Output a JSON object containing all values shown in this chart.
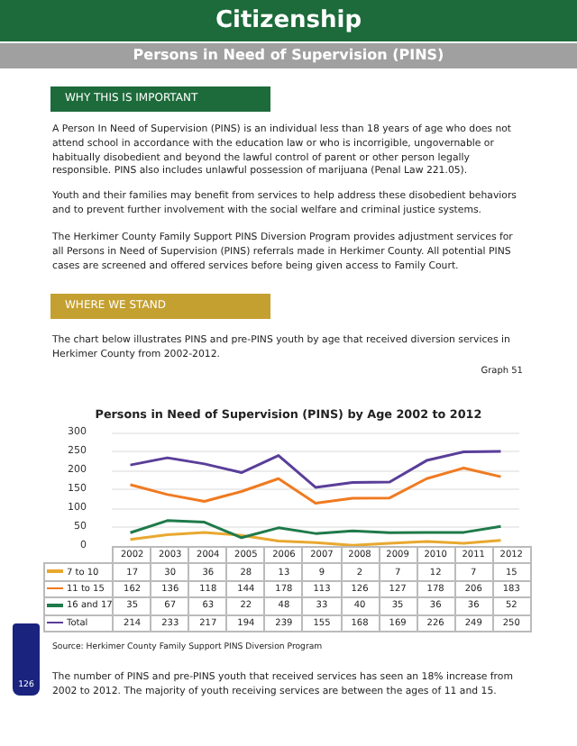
{
  "chart_data": {
    "type": "line",
    "title": "Citizenship",
    "subtitle": "Persons in Need of Supervision (PINS)",
    "annotations": [
      "WHY THIS IS IMPORTANT",
      "A Person In Need of Supervision (PINS) is an individual less than 18 years of age who does not attend school in accordance with the education law or who is incorrigible, ungovernable or habitually disobedient and beyond the lawful control of parent or other person legally responsible.  PINS also includes unlawful possession of marijuana (Penal Law 221.05).",
      "Youth and their families may benefit from services to help address these disobedient behaviors and to prevent further involvement with the social welfare and criminal justice systems.",
      "The Herkimer County Family Support PINS Diversion Program provides adjustment services for all Persons in Need of Supervision (PINS) referrals made in Herkimer County.  All potential PINS cases are screened and offered services before being given access to Family Court.",
      "WHERE WE STAND",
      "The chart below illustrates PINS and pre-PINS youth by age that received diversion services in Herkimer County from 2002-2012.",
      "Graph 51",
      "Persons in Need of Supervision (PINS) by Age 2002 to 2012",
      "Source: Herkimer County Family Support PINS Diversion Program",
      "The number of PINS and pre-PINS youth that received services has seen an 18% increase from 2002 to 2012. The majority of youth receiving services are between the ages of 11 and 15.",
      "126"
    ],
    "categories": [
      "2002",
      "2003",
      "2004",
      "2005",
      "2006",
      "2007",
      "2008",
      "2009",
      "2010",
      "2011",
      "2012"
    ],
    "series": [
      {
        "name": "7 to 10",
        "color": "#e8a830",
        "values": [
          17,
          30,
          36,
          28,
          13,
          9,
          2,
          7,
          12,
          7,
          15
        ]
      },
      {
        "name": "11 to 15",
        "color": "#f07a20",
        "values": [
          162,
          136,
          118,
          144,
          178,
          113,
          126,
          127,
          178,
          206,
          183
        ]
      },
      {
        "name": "16 and 17",
        "color": "#1f7a4a",
        "values": [
          35,
          67,
          63,
          22,
          48,
          33,
          40,
          35,
          36,
          36,
          52
        ]
      },
      {
        "name": "Total",
        "color": "#5a3e99",
        "values": [
          214,
          233,
          217,
          194,
          239,
          155,
          168,
          169,
          226,
          249,
          250
        ]
      }
    ],
    "ylim": [
      0,
      300
    ],
    "yticks": [
      0,
      50,
      100,
      150,
      200,
      250,
      300
    ],
    "grid": "y",
    "legend": "bottom",
    "data_labels": true,
    "marker": "none",
    "line_style": "solid"
  }
}
